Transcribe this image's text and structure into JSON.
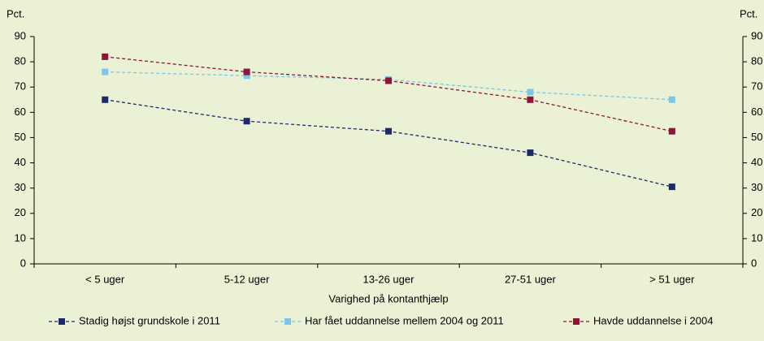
{
  "chart_data": {
    "type": "line",
    "y_label": "Pct.",
    "y2_label": "Pct.",
    "x_label": "Varighed på kontanthjælp",
    "categories": [
      "< 5 uger",
      "5-12 uger",
      "13-26 uger",
      "27-51 uger",
      "> 51 uger"
    ],
    "series": [
      {
        "name": "Stadig højst grundskole i 2011",
        "color": "#1c2a6b",
        "values": [
          65,
          56.5,
          52.5,
          44,
          30.5
        ]
      },
      {
        "name": "Har fået uddannelse mellem 2004 og 2011",
        "color": "#7cc6ea",
        "values": [
          76,
          74.5,
          73,
          68,
          65
        ]
      },
      {
        "name": "Havde uddannelse i 2004",
        "color": "#8c1538",
        "values": [
          82,
          76,
          72.5,
          65,
          52.5
        ]
      }
    ],
    "ylim": [
      0,
      90
    ],
    "yticks": [
      0,
      10,
      20,
      30,
      40,
      50,
      60,
      70,
      80,
      90
    ],
    "y2lim": [
      0,
      90
    ],
    "y2ticks": [
      0,
      10,
      20,
      30,
      40,
      50,
      60,
      70,
      80,
      90
    ],
    "grid": false
  }
}
